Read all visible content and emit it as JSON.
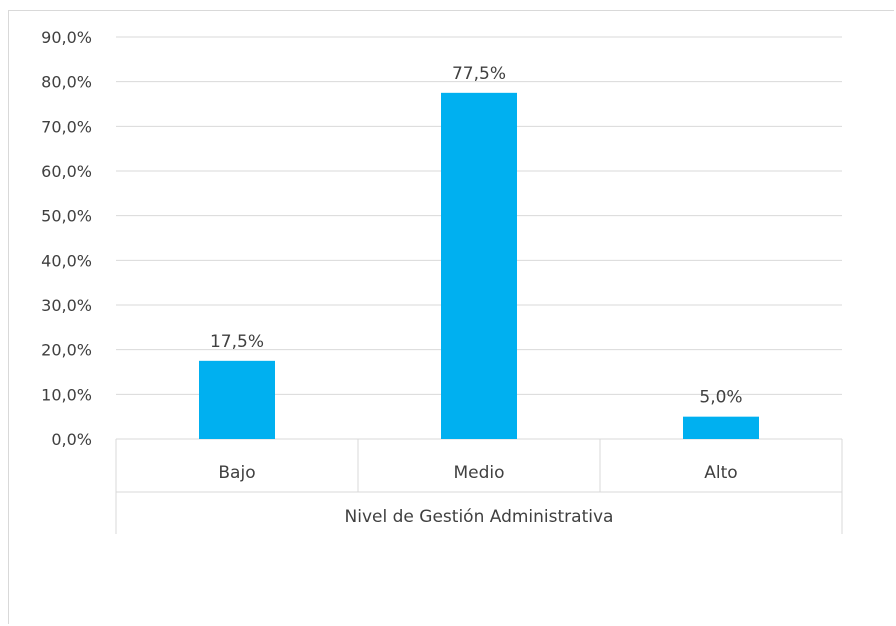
{
  "chart_data": {
    "type": "bar",
    "categories": [
      "Bajo",
      "Medio",
      "Alto"
    ],
    "values": [
      17.5,
      77.5,
      5.0
    ],
    "data_labels": [
      "17,5%",
      "77,5%",
      "5,0%"
    ],
    "title": "",
    "xlabel": "Nivel de Gestión Administrativa",
    "ylabel": "",
    "ylim": [
      0,
      90
    ],
    "yticks": [
      0,
      10,
      20,
      30,
      40,
      50,
      60,
      70,
      80,
      90
    ],
    "ytick_labels": [
      "0,0%",
      "10,0%",
      "20,0%",
      "30,0%",
      "40,0%",
      "50,0%",
      "60,0%",
      "70,0%",
      "80,0%",
      "90,0%"
    ],
    "grid": true,
    "legend": "none",
    "bar_color": "#00B0F0",
    "grid_color": "#d9d9d9",
    "text_color": "#404040"
  }
}
